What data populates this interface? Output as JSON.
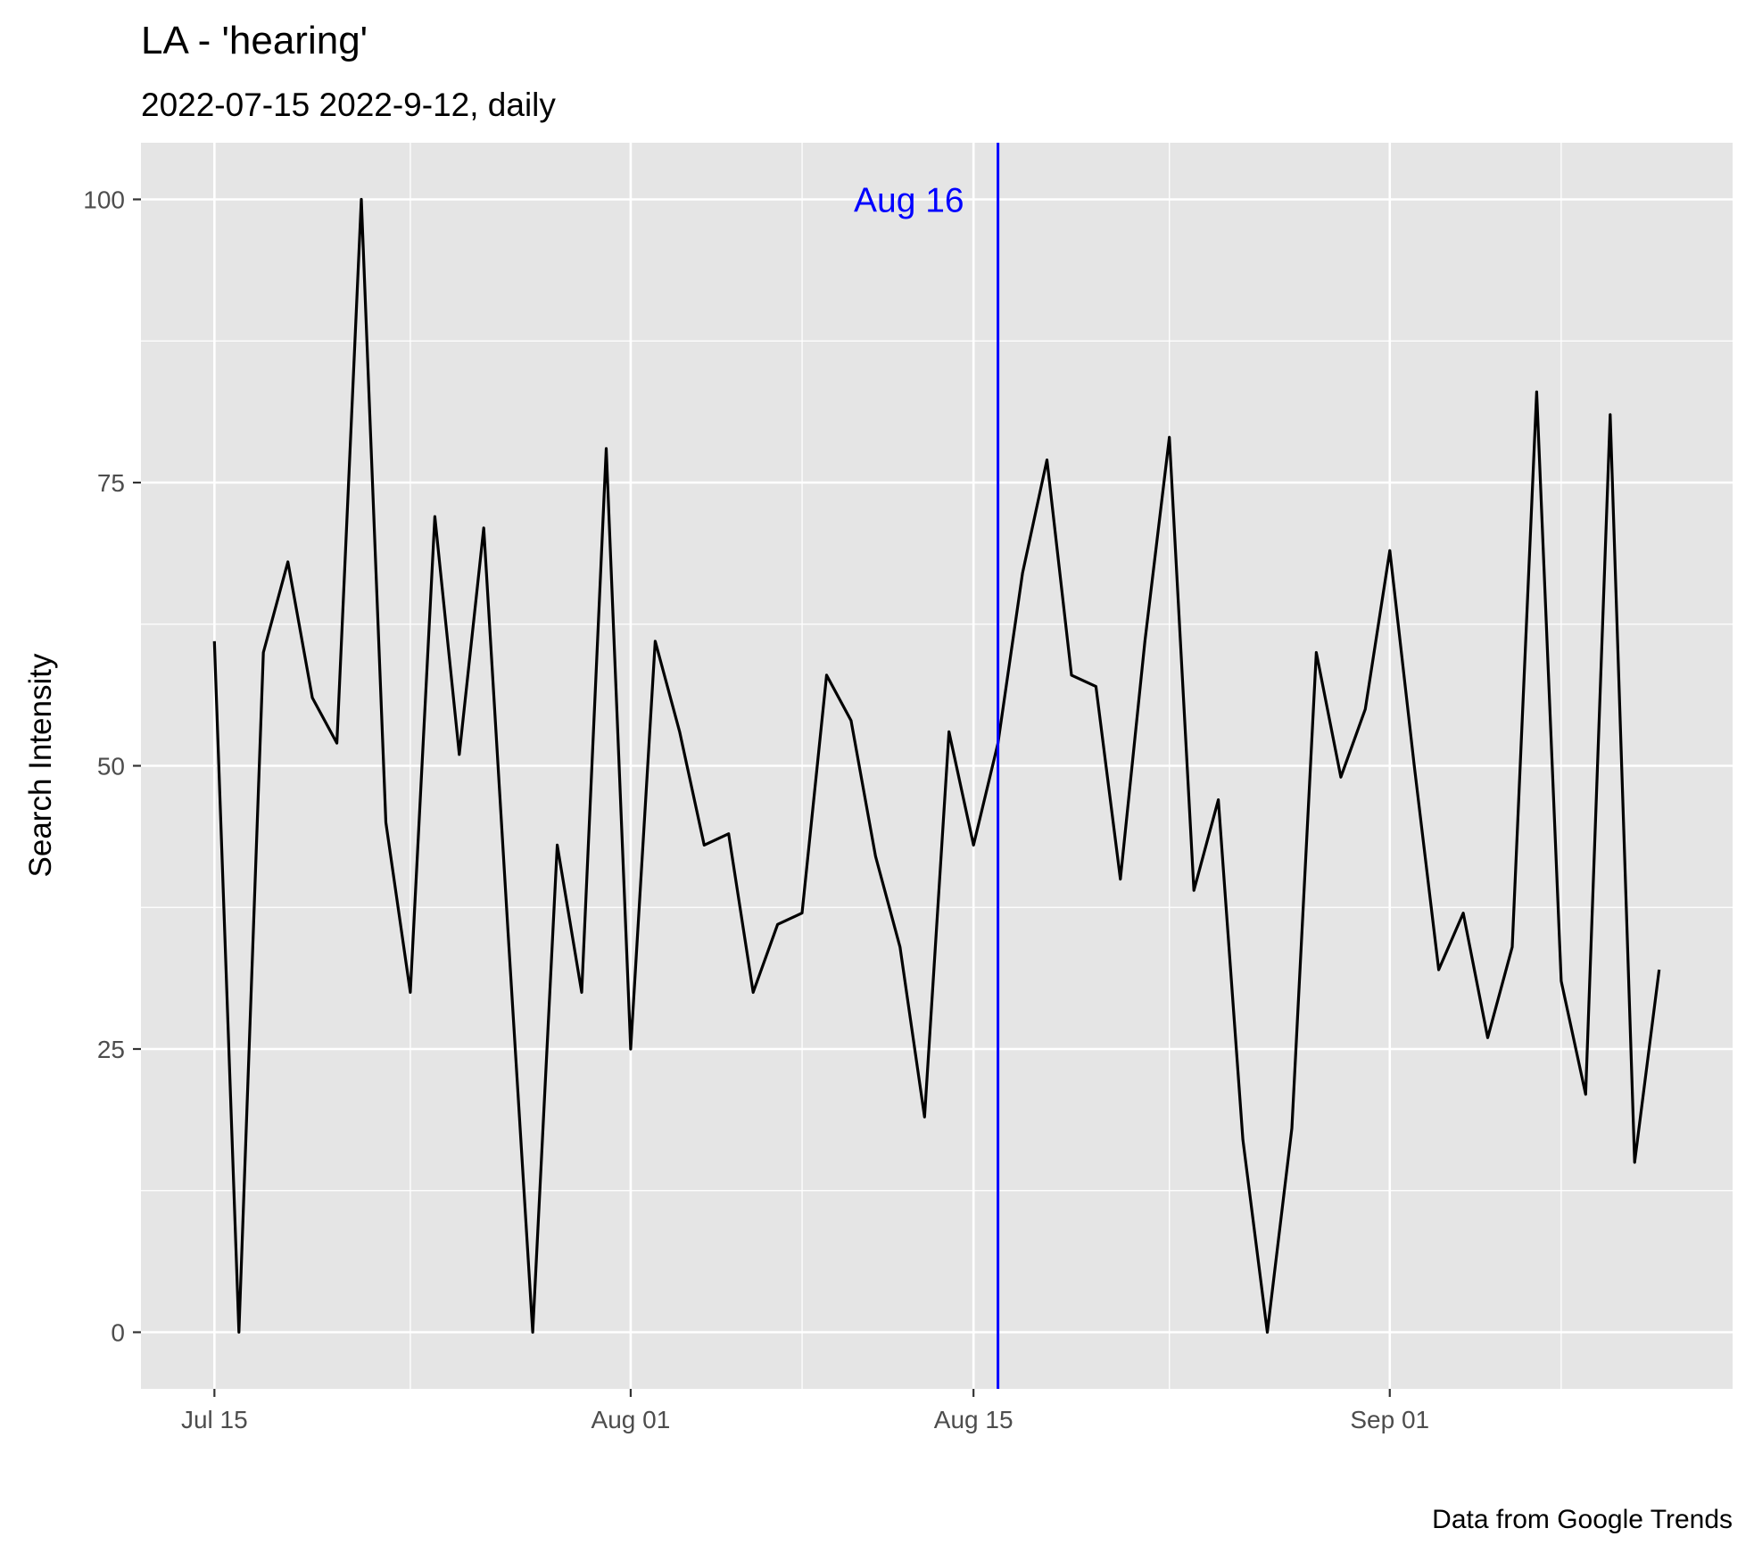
{
  "chart_data": {
    "type": "line",
    "title": "LA  - 'hearing'",
    "subtitle": "2022-07-15 2022-9-12, daily",
    "caption": "Data from Google Trends",
    "xlabel": "",
    "ylabel": "Search Intensity",
    "x_start": "2022-07-15",
    "x_end": "2022-09-12",
    "xlim": [
      "2022-07-12",
      "2022-09-15"
    ],
    "ylim": [
      -5,
      105
    ],
    "x_ticks": [
      {
        "date": "2022-07-15",
        "label": "Jul 15"
      },
      {
        "date": "2022-08-01",
        "label": "Aug 01"
      },
      {
        "date": "2022-08-15",
        "label": "Aug 15"
      },
      {
        "date": "2022-09-01",
        "label": "Sep 01"
      }
    ],
    "x_minor_ticks": [
      "2022-07-23",
      "2022-08-08",
      "2022-08-23",
      "2022-09-08"
    ],
    "y_ticks": [
      0,
      25,
      50,
      75,
      100
    ],
    "y_minor_ticks": [
      12.5,
      37.5,
      62.5,
      87.5
    ],
    "grid": true,
    "series": [
      {
        "color": "#000000",
        "x": [
          "2022-07-15",
          "2022-07-16",
          "2022-07-17",
          "2022-07-18",
          "2022-07-19",
          "2022-07-20",
          "2022-07-21",
          "2022-07-22",
          "2022-07-23",
          "2022-07-24",
          "2022-07-25",
          "2022-07-26",
          "2022-07-27",
          "2022-07-28",
          "2022-07-29",
          "2022-07-30",
          "2022-07-31",
          "2022-08-01",
          "2022-08-02",
          "2022-08-03",
          "2022-08-04",
          "2022-08-05",
          "2022-08-06",
          "2022-08-07",
          "2022-08-08",
          "2022-08-09",
          "2022-08-10",
          "2022-08-11",
          "2022-08-12",
          "2022-08-13",
          "2022-08-14",
          "2022-08-15",
          "2022-08-16",
          "2022-08-17",
          "2022-08-18",
          "2022-08-19",
          "2022-08-20",
          "2022-08-21",
          "2022-08-22",
          "2022-08-23",
          "2022-08-24",
          "2022-08-25",
          "2022-08-26",
          "2022-08-27",
          "2022-08-28",
          "2022-08-29",
          "2022-08-30",
          "2022-08-31",
          "2022-09-01",
          "2022-09-02",
          "2022-09-03",
          "2022-09-04",
          "2022-09-05",
          "2022-09-06",
          "2022-09-07",
          "2022-09-08",
          "2022-09-09",
          "2022-09-10",
          "2022-09-11",
          "2022-09-12"
        ],
        "values": [
          61,
          0,
          60,
          68,
          56,
          52,
          100,
          45,
          30,
          72,
          51,
          71,
          35,
          0,
          43,
          30,
          78,
          25,
          61,
          53,
          43,
          44,
          30,
          36,
          37,
          58,
          54,
          42,
          34,
          19,
          53,
          43,
          52,
          67,
          77,
          58,
          57,
          40,
          61,
          79,
          39,
          47,
          17,
          0,
          18,
          60,
          49,
          55,
          69,
          50,
          32,
          37,
          26,
          34,
          83,
          31,
          21,
          81,
          15,
          32
        ]
      }
    ],
    "annotations": [
      {
        "type": "vline",
        "date": "2022-08-16",
        "color": "#0000ff"
      },
      {
        "type": "text",
        "text": "Aug 16",
        "date": "2022-08-16",
        "y": 100,
        "color": "#0000ff"
      }
    ],
    "colors": {
      "panel_background": "#e5e5e5",
      "grid": "#ffffff",
      "line": "#000000",
      "annotation": "#0000ff"
    }
  }
}
